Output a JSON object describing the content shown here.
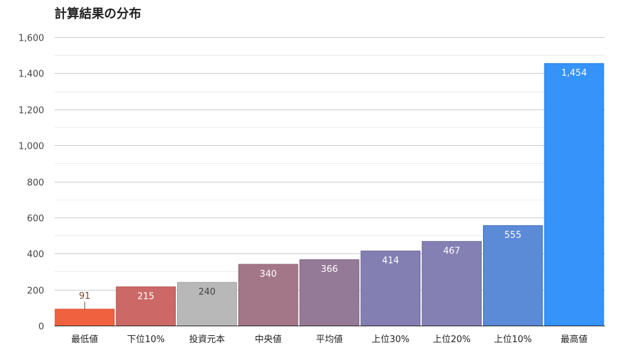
{
  "chart_data": {
    "type": "bar",
    "title": "計算結果の分布",
    "xlabel": "",
    "ylabel": "",
    "ylim": [
      0,
      1600
    ],
    "yticks": [
      0,
      200,
      400,
      600,
      800,
      1000,
      1200,
      1400,
      1600
    ],
    "ytick_labels": [
      "0",
      "200",
      "400",
      "600",
      "800",
      "1,000",
      "1,200",
      "1,400",
      "1,600"
    ],
    "grid": true,
    "categories": [
      "最低値",
      "下位10%",
      "投資元本",
      "中央値",
      "平均値",
      "上位30%",
      "上位20%",
      "上位10%",
      "最高値"
    ],
    "values": [
      91,
      215,
      240,
      340,
      366,
      414,
      467,
      555,
      1454
    ],
    "value_labels": [
      "91",
      "215",
      "240",
      "340",
      "366",
      "414",
      "467",
      "555",
      "1,454"
    ],
    "colors": [
      "#f0623f",
      "#cc6966",
      "#b8b8b8",
      "#a47788",
      "#957a97",
      "#837fb2",
      "#8580b3",
      "#5b8ad6",
      "#3593fa"
    ],
    "label_colors": [
      "#7a4a2a",
      "#ffffff",
      "#444444",
      "#ffffff",
      "#ffffff",
      "#ffffff",
      "#ffffff",
      "#ffffff",
      "#ffffff"
    ]
  }
}
